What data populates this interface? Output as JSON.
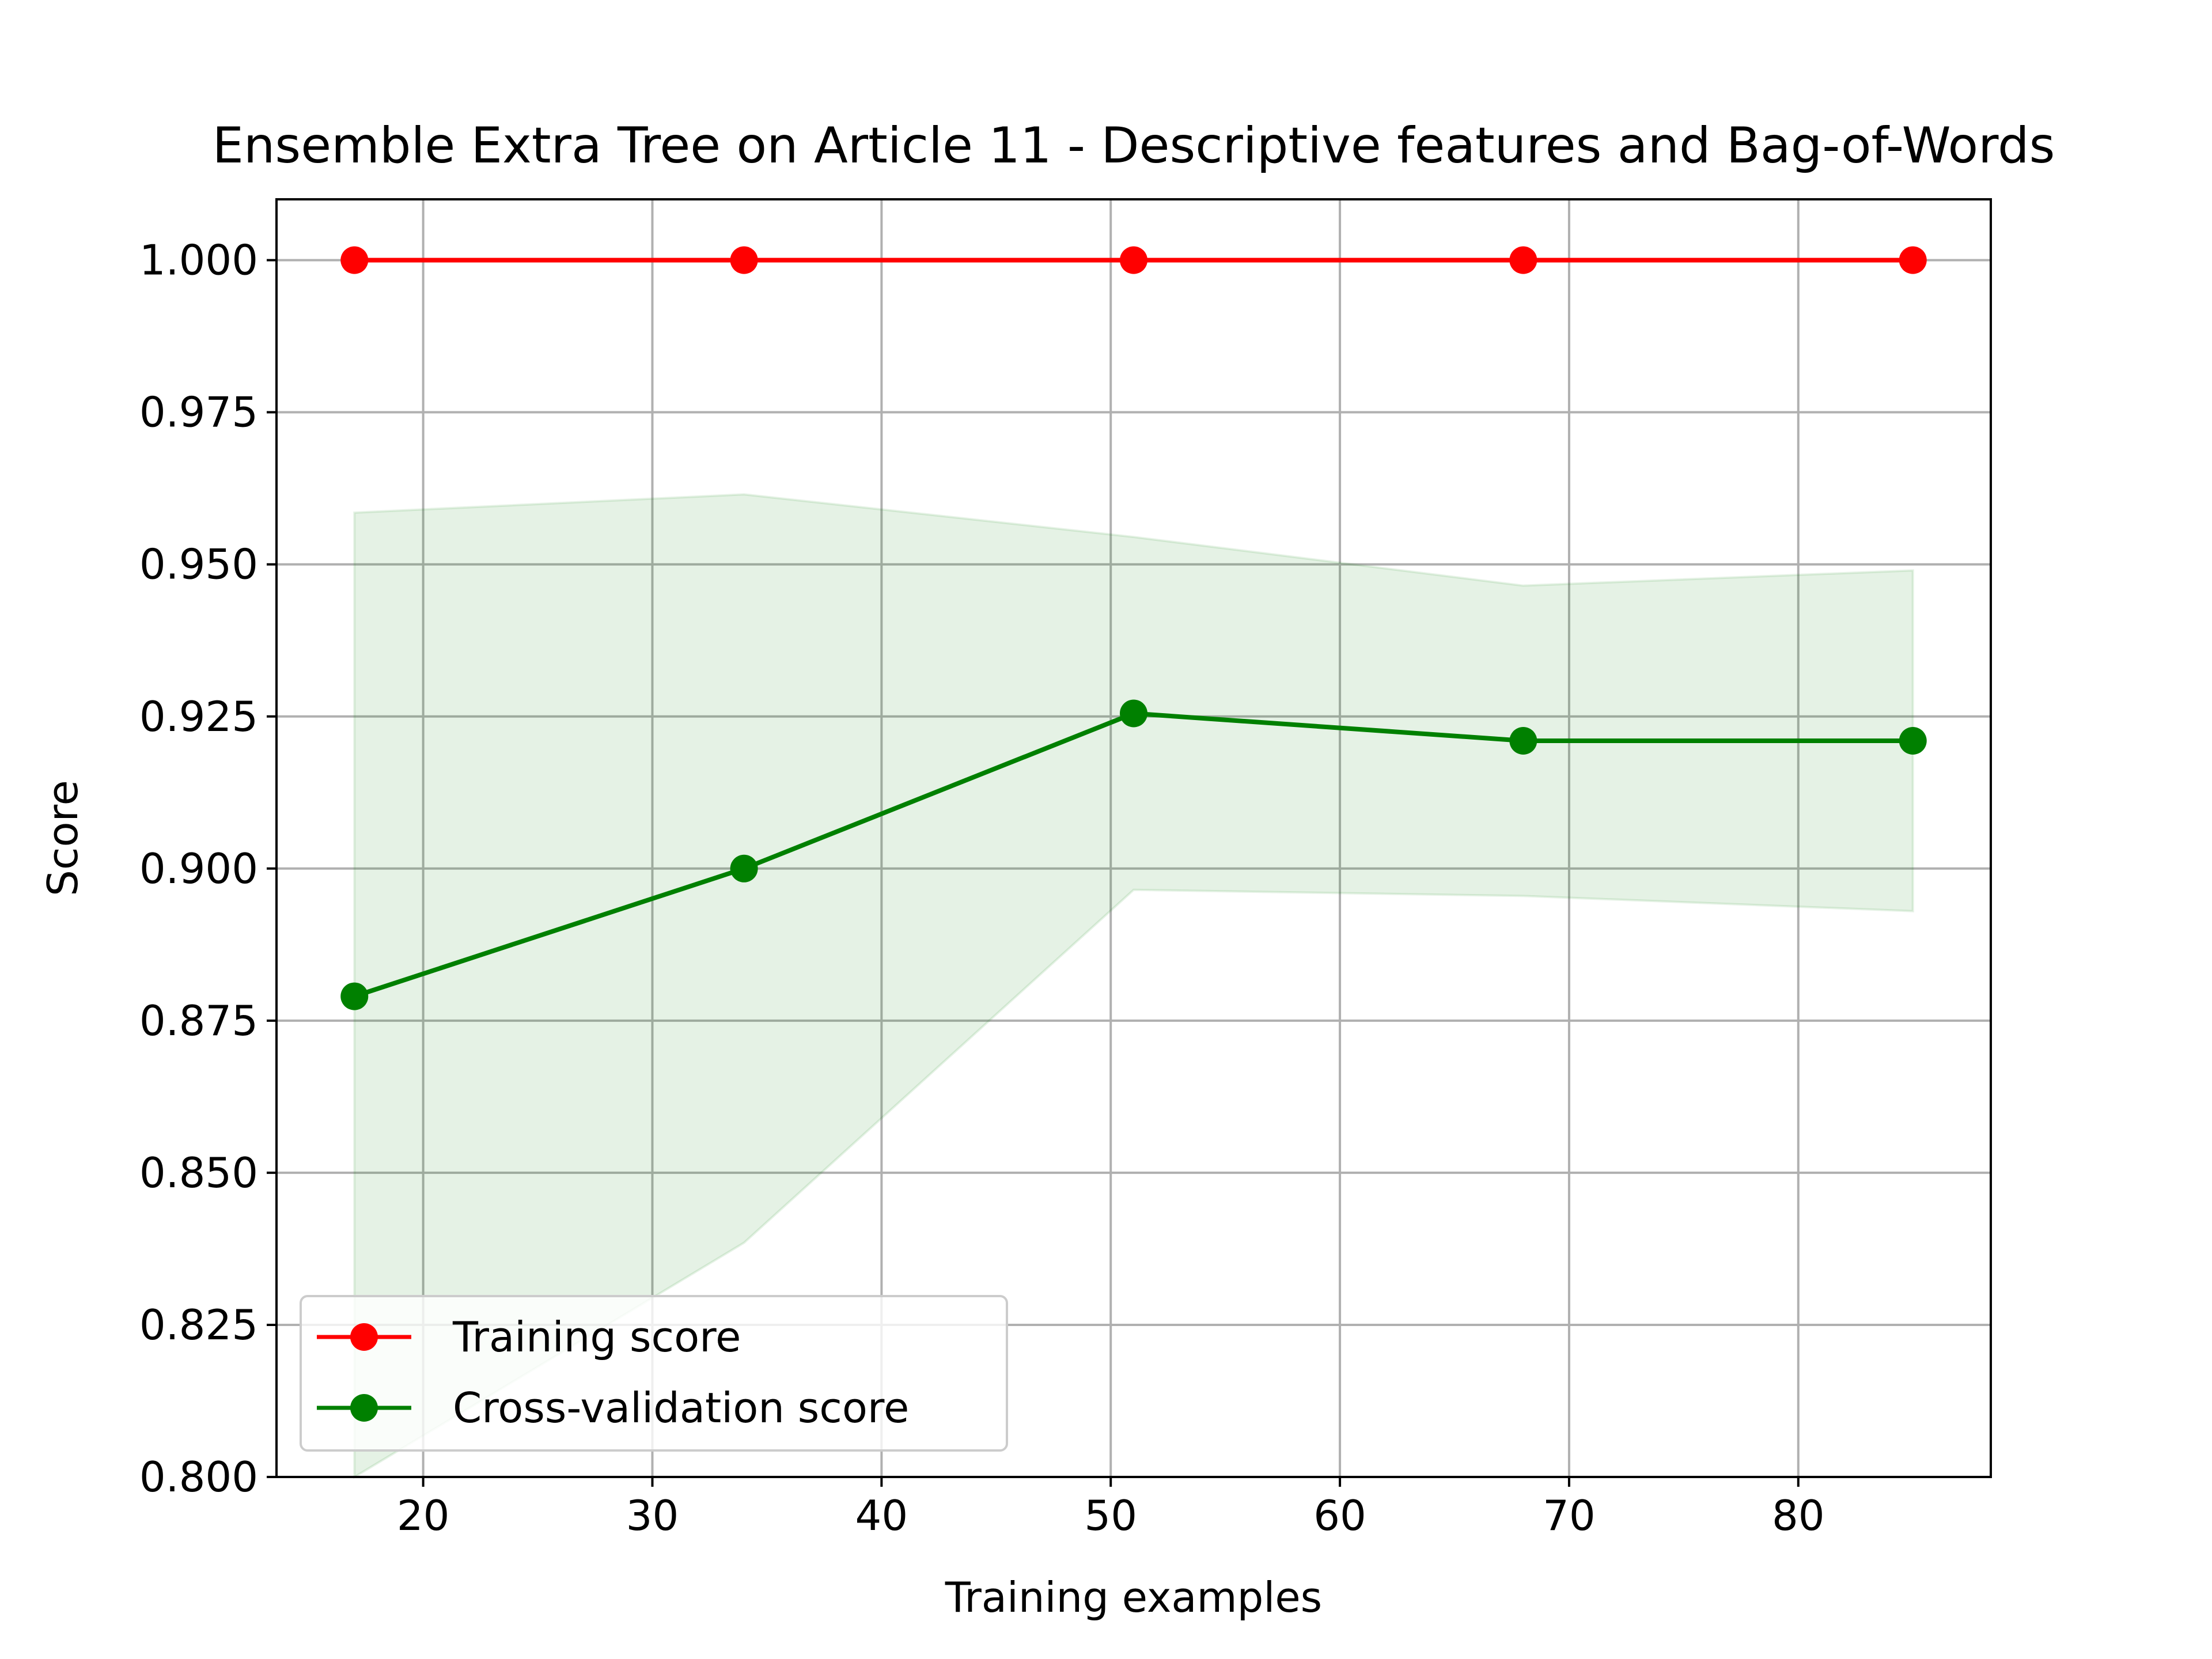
{
  "chart_data": {
    "type": "line",
    "title": "Ensemble Extra Tree on Article 11 - Descriptive features and Bag-of-Words",
    "xlabel": "Training examples",
    "ylabel": "Score",
    "xlim": [
      13.6,
      88.4
    ],
    "ylim": [
      0.8,
      1.01
    ],
    "xticks": [
      20,
      30,
      40,
      50,
      60,
      70,
      80
    ],
    "yticks": [
      0.8,
      0.825,
      0.85,
      0.875,
      0.9,
      0.925,
      0.95,
      0.975,
      1.0
    ],
    "ytick_labels": [
      "0.800",
      "0.825",
      "0.850",
      "0.875",
      "0.900",
      "0.925",
      "0.950",
      "0.975",
      "1.000"
    ],
    "x": [
      17,
      34,
      51,
      68,
      85
    ],
    "grid": true,
    "legend_position": "lower-left",
    "series": [
      {
        "name": "Training score",
        "color": "#ff0000",
        "values": [
          1.0,
          1.0,
          1.0,
          1.0,
          1.0
        ]
      },
      {
        "name": "Cross-validation score",
        "color": "#008000",
        "values": [
          0.879,
          0.9,
          0.9255,
          0.921,
          0.921
        ],
        "band_lower": [
          0.8,
          0.8385,
          0.8965,
          0.8955,
          0.893
        ],
        "band_upper": [
          0.9585,
          0.9615,
          0.9545,
          0.9465,
          0.949
        ]
      }
    ]
  }
}
